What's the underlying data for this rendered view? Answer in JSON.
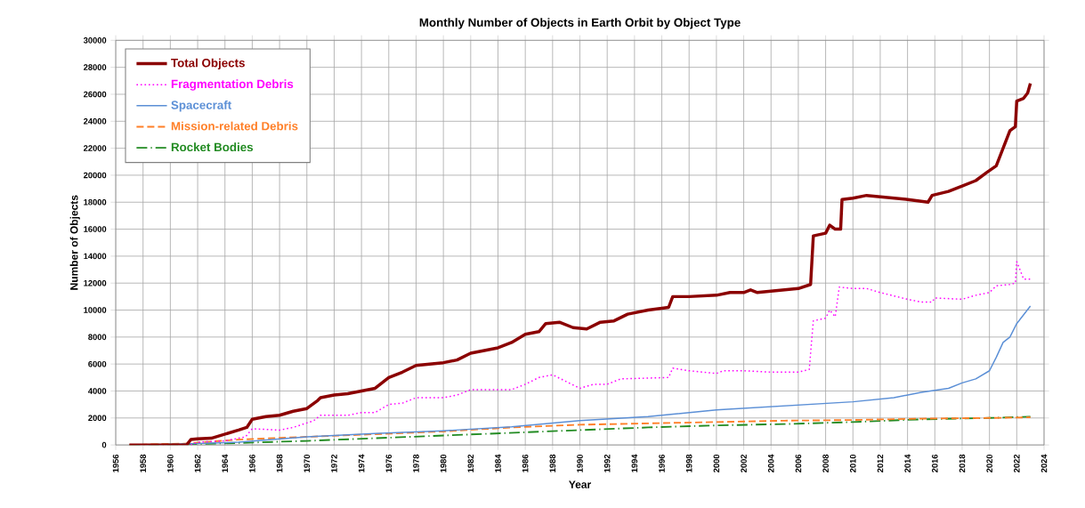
{
  "chart_data": {
    "type": "line",
    "title": "Monthly Number of Objects in Earth Orbit by Object Type",
    "xlabel": "Year",
    "ylabel": "Number of Objects",
    "xlim": [
      1956,
      2024
    ],
    "xticks": [
      1956,
      1958,
      1960,
      1962,
      1964,
      1966,
      1968,
      1970,
      1972,
      1974,
      1976,
      1978,
      1980,
      1982,
      1984,
      1986,
      1988,
      1990,
      1992,
      1994,
      1996,
      1998,
      2000,
      2002,
      2004,
      2006,
      2008,
      2010,
      2012,
      2014,
      2016,
      2018,
      2020,
      2022,
      2024
    ],
    "ylim": [
      0,
      30000
    ],
    "yticks": [
      0,
      2000,
      4000,
      6000,
      8000,
      10000,
      12000,
      14000,
      16000,
      18000,
      20000,
      22000,
      24000,
      26000,
      28000,
      30000
    ],
    "grid": true,
    "legend": "top left",
    "series": [
      {
        "name": "Total Objects",
        "color": "#8b0000",
        "line_style": "solid",
        "x": [
          1957,
          1961.2,
          1961.5,
          1962,
          1963,
          1964,
          1965,
          1965.6,
          1966,
          1967,
          1968,
          1969,
          1970,
          1970.8,
          1971,
          1972,
          1973,
          1974,
          1975,
          1976,
          1977,
          1978,
          1979,
          1980,
          1981,
          1982,
          1983,
          1984,
          1985,
          1986,
          1987,
          1987.5,
          1988.5,
          1989.5,
          1990.5,
          1991.5,
          1992.5,
          1993.5,
          1995,
          1996.5,
          1996.8,
          1998,
          2000,
          2001,
          2002,
          2002.5,
          2003,
          2004,
          2005,
          2006,
          2006.9,
          2007.1,
          2008,
          2008.3,
          2008.7,
          2009.1,
          2009.2,
          2010,
          2011,
          2012,
          2014,
          2015.5,
          2015.8,
          2017,
          2018,
          2019,
          2019.8,
          2020.5,
          2021,
          2021.5,
          2021.9,
          2022,
          2022.5,
          2022.8,
          2023
        ],
        "values": [
          0,
          0,
          400,
          450,
          500,
          800,
          1100,
          1300,
          1900,
          2100,
          2200,
          2500,
          2700,
          3300,
          3500,
          3700,
          3800,
          4000,
          4200,
          5000,
          5400,
          5900,
          6000,
          6100,
          6300,
          6800,
          7000,
          7200,
          7600,
          8200,
          8400,
          9000,
          9100,
          8700,
          8600,
          9100,
          9200,
          9700,
          10000,
          10200,
          11000,
          11000,
          11100,
          11300,
          11300,
          11500,
          11300,
          11400,
          11500,
          11600,
          11900,
          15500,
          15700,
          16300,
          16000,
          16000,
          18200,
          18300,
          18500,
          18400,
          18200,
          18000,
          18500,
          18800,
          19200,
          19600,
          20200,
          20700,
          22000,
          23300,
          23600,
          25500,
          25700,
          26100,
          26800
        ]
      },
      {
        "name": "Fragmentation Debris",
        "color": "#ff00ff",
        "line_style": "dotted",
        "x": [
          1961.5,
          1962,
          1964,
          1965.5,
          1966,
          1968,
          1969,
          1970.5,
          1971,
          1973,
          1974,
          1975,
          1976,
          1977,
          1978,
          1980,
          1981,
          1982,
          1985,
          1986,
          1987,
          1988,
          1989,
          1990,
          1991,
          1992,
          1993,
          1996.5,
          1996.8,
          1998,
          2000,
          2000.5,
          2002,
          2004,
          2006,
          2006.8,
          2007.1,
          2008,
          2008.3,
          2008.7,
          2009,
          2010,
          2011,
          2012,
          2014,
          2015,
          2015.8,
          2016,
          2018,
          2019,
          2020,
          2020.5,
          2021.5,
          2021.9,
          2022,
          2022.5,
          2023
        ],
        "values": [
          0,
          200,
          300,
          600,
          1200,
          1100,
          1300,
          1800,
          2200,
          2200,
          2400,
          2400,
          3000,
          3100,
          3500,
          3500,
          3700,
          4100,
          4100,
          4500,
          5000,
          5200,
          4700,
          4200,
          4500,
          4500,
          4900,
          5000,
          5700,
          5500,
          5300,
          5500,
          5500,
          5400,
          5400,
          5600,
          9200,
          9400,
          10000,
          9500,
          11700,
          11600,
          11600,
          11300,
          10800,
          10600,
          10600,
          10900,
          10800,
          11100,
          11300,
          11800,
          11900,
          12000,
          13600,
          12300,
          12300
        ]
      },
      {
        "name": "Spacecraft",
        "color": "#5b8fd6",
        "line_style": "solid",
        "x": [
          1957,
          1960,
          1965,
          1970,
          1975,
          1980,
          1985,
          1990,
          1995,
          1997,
          2000,
          2005,
          2010,
          2013,
          2015,
          2017,
          2018,
          2019,
          2020,
          2020.5,
          2021,
          2021.5,
          2022,
          2023
        ],
        "values": [
          0,
          50,
          200,
          600,
          850,
          1050,
          1350,
          1800,
          2100,
          2300,
          2600,
          2900,
          3200,
          3500,
          3900,
          4200,
          4600,
          4900,
          5500,
          6500,
          7600,
          8000,
          9000,
          10300
        ]
      },
      {
        "name": "Mission-related Debris",
        "color": "#ff7f27",
        "line_style": "dashed",
        "x": [
          1957,
          1961,
          1965,
          1970,
          1975,
          1980,
          1985,
          1990,
          1995,
          2000,
          2005,
          2010,
          2015,
          2020,
          2023
        ],
        "values": [
          0,
          100,
          400,
          600,
          800,
          1000,
          1300,
          1500,
          1600,
          1700,
          1800,
          1850,
          1950,
          2000,
          2050
        ]
      },
      {
        "name": "Rocket Bodies",
        "color": "#228b22",
        "line_style": "dashdot",
        "x": [
          1957,
          1961,
          1965,
          1970,
          1975,
          1980,
          1985,
          1990,
          1995,
          2000,
          2005,
          2010,
          2015,
          2020,
          2023
        ],
        "values": [
          0,
          50,
          150,
          300,
          500,
          700,
          900,
          1100,
          1300,
          1450,
          1550,
          1700,
          1900,
          2000,
          2100
        ]
      }
    ]
  }
}
